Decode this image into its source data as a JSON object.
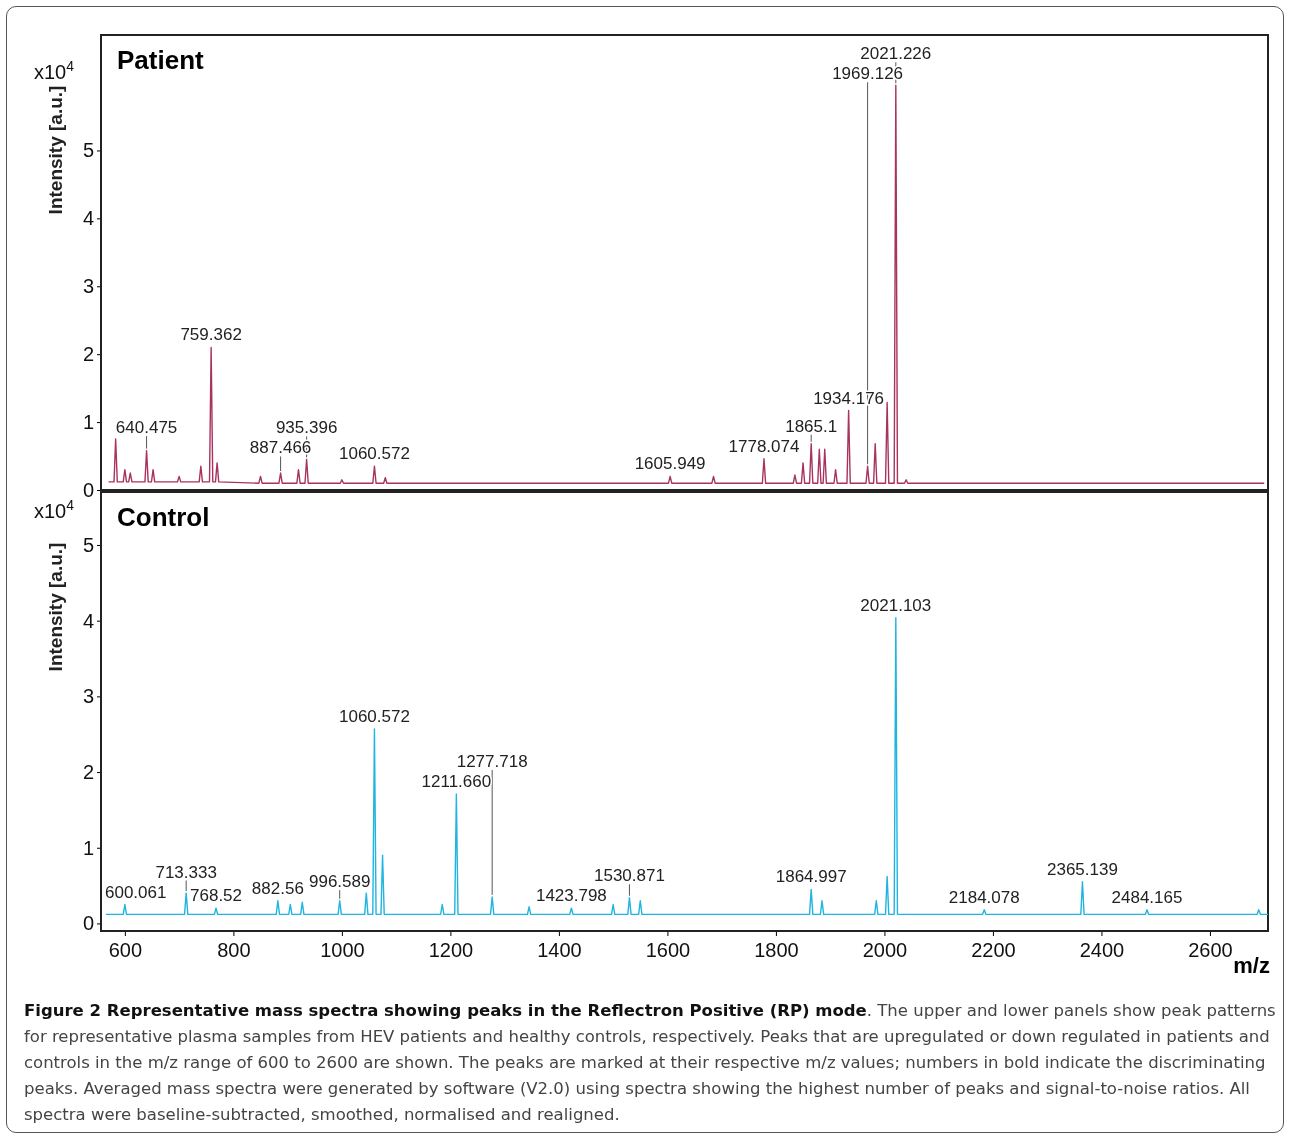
{
  "chart_data": [
    {
      "type": "line",
      "title": "Patient",
      "ylabel": "Intensity [a.u.]",
      "xlim": [
        556,
        2707
      ],
      "ylim": [
        0,
        6.7
      ],
      "yticks": [
        0,
        1,
        2,
        3,
        4,
        5
      ],
      "tick_labels": "y",
      "grid": false,
      "marker": "none",
      "line_style": "solid",
      "series": [
        {
          "color": "#a8335f",
          "x": [
            570,
            580,
            583,
            586,
            597,
            600,
            603,
            607,
            610,
            613,
            637,
            640,
            643,
            649,
            652,
            655,
            697,
            700,
            703,
            737,
            740,
            743,
            756,
            759,
            762,
            767,
            770,
            773,
            847,
            850,
            853,
            884,
            887,
            890,
            917,
            920,
            923,
            932,
            935,
            938,
            997,
            1000,
            1003,
            1057,
            1060,
            1063,
            1077,
            1080,
            1083,
            1602,
            1605,
            1608,
            1682,
            1685,
            1688,
            1775,
            1778,
            1781,
            1832,
            1835,
            1838,
            1847,
            1850,
            1853,
            1862,
            1865,
            1868,
            1877,
            1880,
            1883,
            1887,
            1890,
            1893,
            1907,
            1910,
            1913,
            1931,
            1934,
            1937,
            1966,
            1969,
            1972,
            1980,
            1983,
            1986,
            2002,
            2005,
            2008,
            2018,
            2021,
            2024,
            2037,
            2040,
            2043,
            2700
          ],
          "values": [
            0.12,
            0.12,
            0.75,
            0.12,
            0.12,
            0.3,
            0.12,
            0.12,
            0.25,
            0.12,
            0.12,
            0.58,
            0.12,
            0.12,
            0.3,
            0.12,
            0.12,
            0.2,
            0.12,
            0.12,
            0.35,
            0.12,
            0.12,
            2.1,
            0.12,
            0.12,
            0.4,
            0.12,
            0.1,
            0.2,
            0.1,
            0.1,
            0.25,
            0.1,
            0.1,
            0.3,
            0.1,
            0.1,
            0.45,
            0.1,
            0.1,
            0.15,
            0.1,
            0.1,
            0.35,
            0.1,
            0.1,
            0.18,
            0.1,
            0.1,
            0.2,
            0.1,
            0.1,
            0.2,
            0.1,
            0.1,
            0.46,
            0.1,
            0.1,
            0.22,
            0.1,
            0.1,
            0.4,
            0.1,
            0.1,
            0.68,
            0.1,
            0.1,
            0.6,
            0.1,
            0.1,
            0.6,
            0.1,
            0.1,
            0.3,
            0.1,
            0.1,
            1.17,
            0.1,
            0.1,
            0.35,
            0.1,
            0.1,
            0.68,
            0.1,
            0.1,
            1.29,
            0.1,
            0.1,
            5.96,
            0.1,
            0.1,
            0.15,
            0.1,
            0.1
          ]
        }
      ],
      "annotations": [
        "x10$^{4}$",
        {
          "text": "640.475",
          "x": 640,
          "y": 0.58
        },
        {
          "text": "759.362",
          "x": 759,
          "y": 2.1
        },
        {
          "text": "887.466",
          "x": 887,
          "y": 0.25
        },
        {
          "text": "935.396",
          "x": 935,
          "y": 0.45
        },
        {
          "text": "1060.572",
          "x": 1060,
          "y": 0.35
        },
        {
          "text": "1605.949",
          "x": 1605,
          "y": 0.2
        },
        {
          "text": "1778.074",
          "x": 1778,
          "y": 0.46
        },
        {
          "text": "1865.1",
          "x": 1865,
          "y": 0.68
        },
        {
          "text": "1934.176",
          "x": 1934,
          "y": 1.17
        },
        {
          "text": "1969.126",
          "x": 1969,
          "y": 0.35
        },
        {
          "text": "2021.226",
          "x": 2021,
          "y": 5.96
        }
      ]
    },
    {
      "type": "line",
      "title": "Control",
      "ylabel": "Intensity [a.u.]",
      "xlabel": "m/z",
      "xlim": [
        556,
        2707
      ],
      "ylim": [
        -0.1,
        5.7
      ],
      "xticks": [
        600,
        800,
        1000,
        1200,
        1400,
        1600,
        1800,
        2000,
        2200,
        2400,
        2600
      ],
      "yticks": [
        0,
        1,
        2,
        3,
        4,
        5
      ],
      "grid": false,
      "marker": "none",
      "line_style": "solid",
      "series": [
        {
          "color": "#1fb5e0",
          "x": [
            565,
            597,
            600,
            603,
            710,
            713,
            716,
            765,
            768,
            771,
            879,
            882,
            885,
            902,
            905,
            908,
            924,
            927,
            930,
            993,
            996,
            999,
            1042,
            1045,
            1048,
            1057,
            1060,
            1063,
            1072,
            1075,
            1078,
            1182,
            1185,
            1188,
            1208,
            1211,
            1214,
            1274,
            1277,
            1280,
            1342,
            1345,
            1348,
            1420,
            1423,
            1426,
            1497,
            1500,
            1503,
            1527,
            1530,
            1533,
            1547,
            1550,
            1553,
            1862,
            1865,
            1868,
            1882,
            1885,
            1888,
            1982,
            1985,
            1988,
            2002,
            2005,
            2008,
            2018,
            2021,
            2024,
            2181,
            2184,
            2187,
            2362,
            2365,
            2368,
            2481,
            2484,
            2487,
            2687,
            2690,
            2693,
            2707
          ],
          "values": [
            0.12,
            0.12,
            0.25,
            0.12,
            0.12,
            0.4,
            0.12,
            0.12,
            0.2,
            0.12,
            0.12,
            0.3,
            0.12,
            0.12,
            0.25,
            0.12,
            0.12,
            0.28,
            0.12,
            0.12,
            0.3,
            0.12,
            0.12,
            0.4,
            0.12,
            0.12,
            2.57,
            0.12,
            0.12,
            0.9,
            0.12,
            0.12,
            0.25,
            0.12,
            0.12,
            1.71,
            0.12,
            0.12,
            0.35,
            0.12,
            0.12,
            0.22,
            0.12,
            0.12,
            0.2,
            0.12,
            0.12,
            0.25,
            0.12,
            0.12,
            0.34,
            0.12,
            0.12,
            0.3,
            0.12,
            0.12,
            0.45,
            0.12,
            0.12,
            0.3,
            0.12,
            0.12,
            0.3,
            0.12,
            0.12,
            0.62,
            0.12,
            0.12,
            4.04,
            0.12,
            0.12,
            0.18,
            0.12,
            0.12,
            0.55,
            0.12,
            0.12,
            0.18,
            0.12,
            0.12,
            0.18,
            0.12,
            0.12
          ]
        }
      ],
      "annotations": [
        "x10$^{4}$",
        "Figure 2 Representative mass spectra showing peaks in the Reflectron Positive (RP) mode",
        ". The upper and lower panels show peak patterns for representative plasma samples from HEV patients and healthy controls, respectively. Peaks that are upregulated or down regulated in patients and controls in the m/z range of 600 to 2600 are shown. The peaks are marked at their respective m/z values; numbers in bold indicate the discriminating peaks. Averaged mass spectra were generated by software (V2.0) using spectra showing the highest number of peaks and signal-to-noise ratios. All spectra were baseline-subtracted, smoothed, normalised and realigned.",
        {
          "text": "600.061",
          "x": 600,
          "y": 0.25
        },
        {
          "text": "713.333",
          "x": 713,
          "y": 0.4
        },
        {
          "text": "768.52",
          "x": 768,
          "y": 0.2
        },
        {
          "text": "882.56",
          "x": 882,
          "y": 0.3
        },
        {
          "text": "996.589",
          "x": 996,
          "y": 0.3
        },
        {
          "text": "1060.572",
          "x": 1060,
          "y": 2.57
        },
        {
          "text": "1211.660",
          "x": 1211,
          "y": 1.71
        },
        {
          "text": "1277.718",
          "x": 1277,
          "y": 0.35
        },
        {
          "text": "1423.798",
          "x": 1423,
          "y": 0.2
        },
        {
          "text": "1530.871",
          "x": 1530,
          "y": 0.34
        },
        {
          "text": "1864.997",
          "x": 1865,
          "y": 0.45
        },
        {
          "text": "2021.103",
          "x": 2021,
          "y": 4.04
        },
        {
          "text": "2184.078",
          "x": 2184,
          "y": 0.18
        },
        {
          "text": "2365.139",
          "x": 2365,
          "y": 0.55
        },
        {
          "text": "2484.165",
          "x": 2484,
          "y": 0.18
        }
      ]
    }
  ]
}
